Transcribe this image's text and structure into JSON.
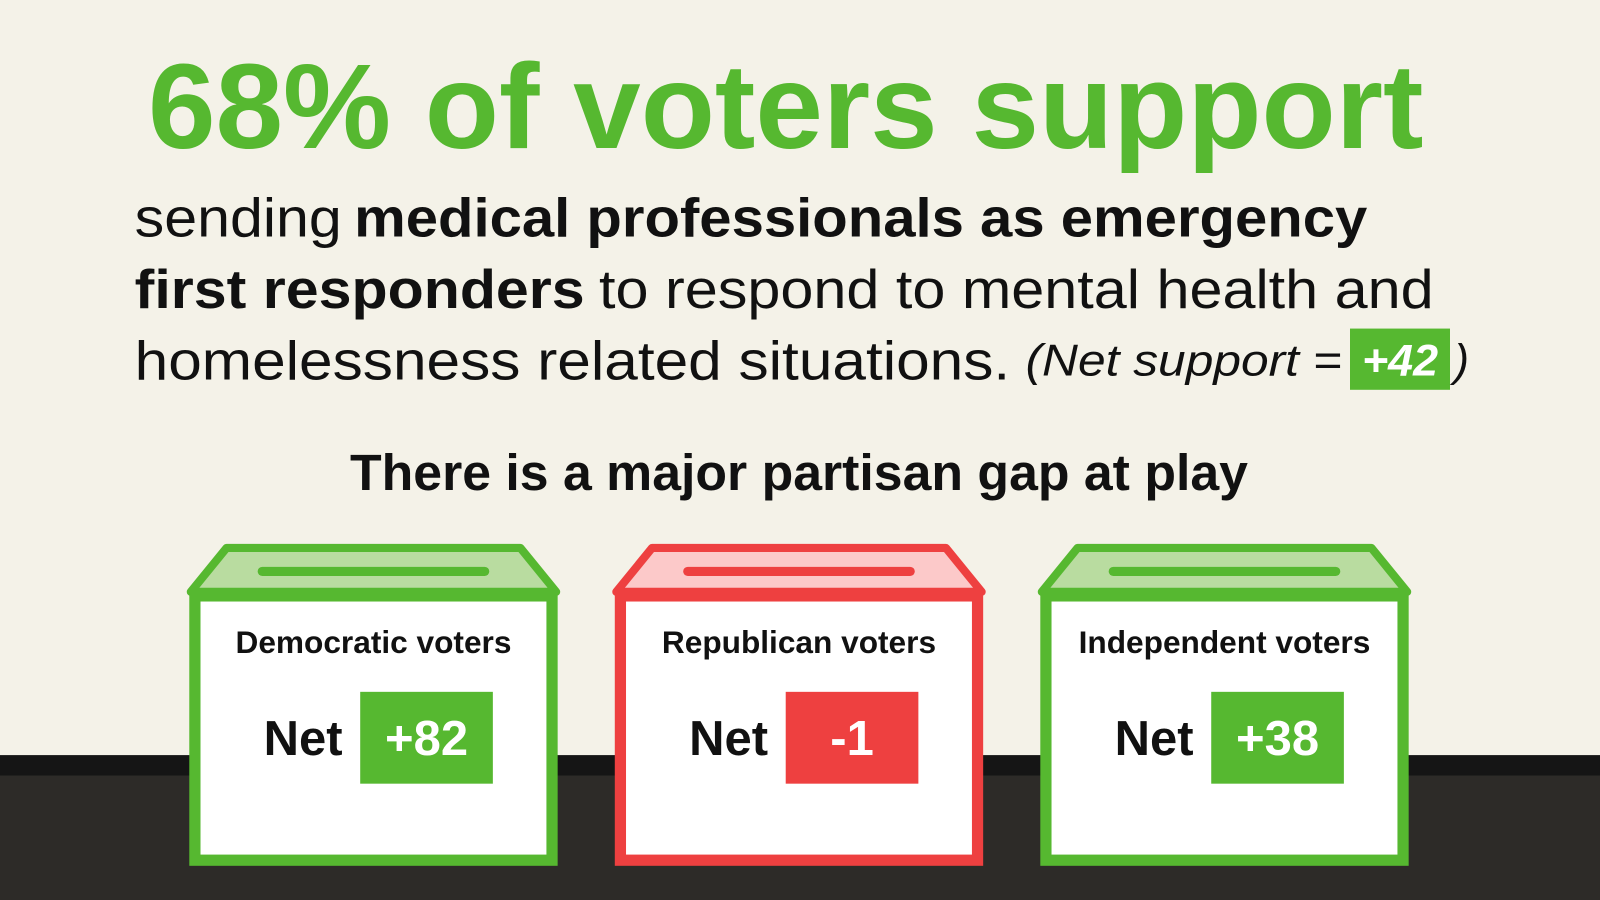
{
  "headline": "68% of voters support",
  "body": {
    "line1": {
      "regular": "sending",
      "bold": "medical professionals as emergency"
    },
    "line2": {
      "bold": "first responders",
      "regular": "to respond to mental health and"
    },
    "line3": {
      "regular": "homelessness related situations.",
      "note": "(Net support =",
      "net": "+42",
      "close": ")"
    }
  },
  "subheading": "There is a major partisan gap at play",
  "groups": [
    {
      "label": "Democratic voters",
      "net_label": "Net",
      "net": "+82"
    },
    {
      "label": "Republican voters",
      "net_label": "Net",
      "net": "-1"
    },
    {
      "label": "Independent voters",
      "net_label": "Net",
      "net": "+38"
    }
  ]
}
